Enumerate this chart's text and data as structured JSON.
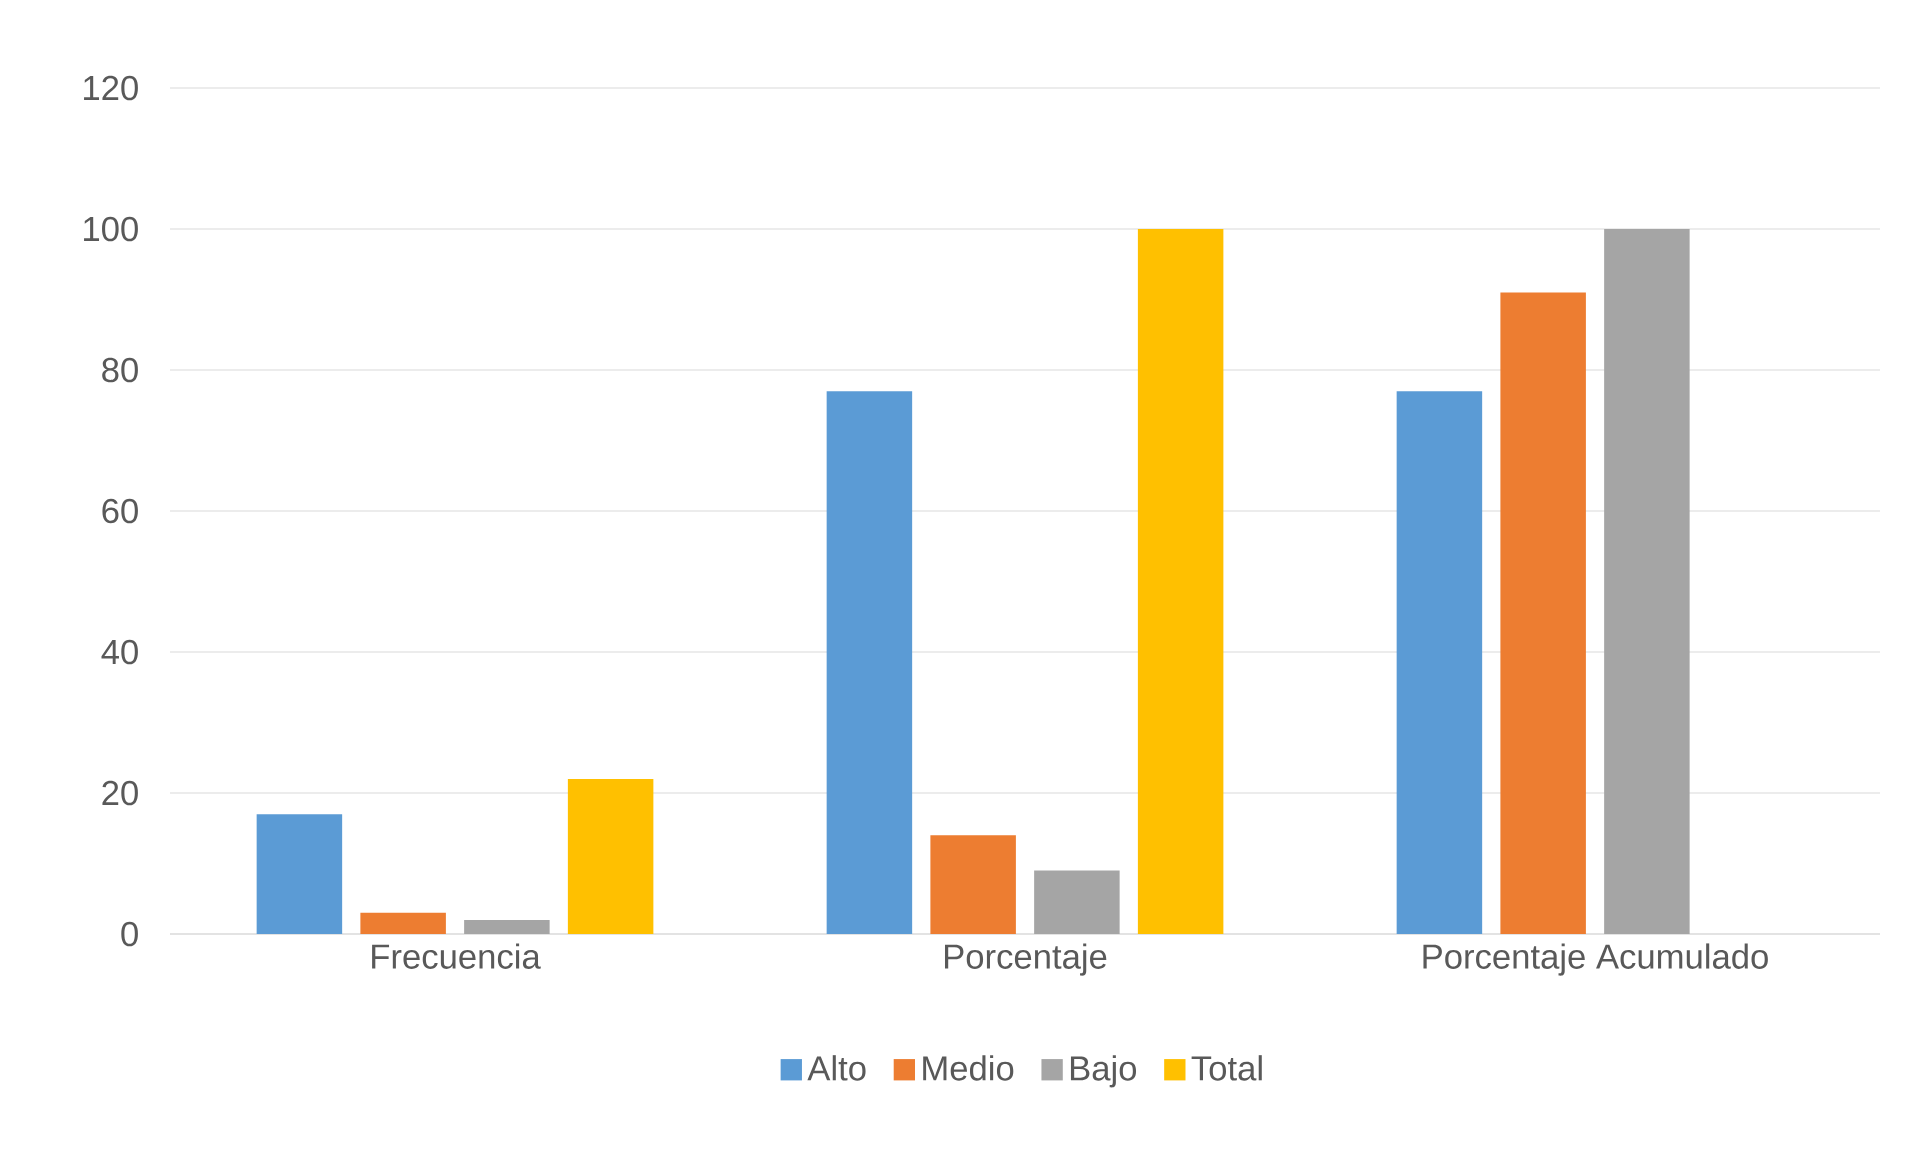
{
  "chart_data": {
    "type": "bar",
    "categories": [
      "Frecuencia",
      "Porcentaje",
      "Porcentaje Acumulado"
    ],
    "series": [
      {
        "name": "Alto",
        "color": "#5b9bd5",
        "values": [
          17,
          77,
          77
        ]
      },
      {
        "name": "Medio",
        "color": "#ed7d31",
        "values": [
          3,
          14,
          91
        ]
      },
      {
        "name": "Bajo",
        "color": "#a5a5a5",
        "values": [
          2,
          9,
          100
        ]
      },
      {
        "name": "Total",
        "color": "#ffc000",
        "values": [
          22,
          100,
          null
        ]
      }
    ],
    "ylim": [
      0,
      120
    ],
    "yticks": [
      0,
      20,
      40,
      60,
      80,
      100,
      120
    ],
    "grid": "y",
    "legend": "bottom"
  }
}
